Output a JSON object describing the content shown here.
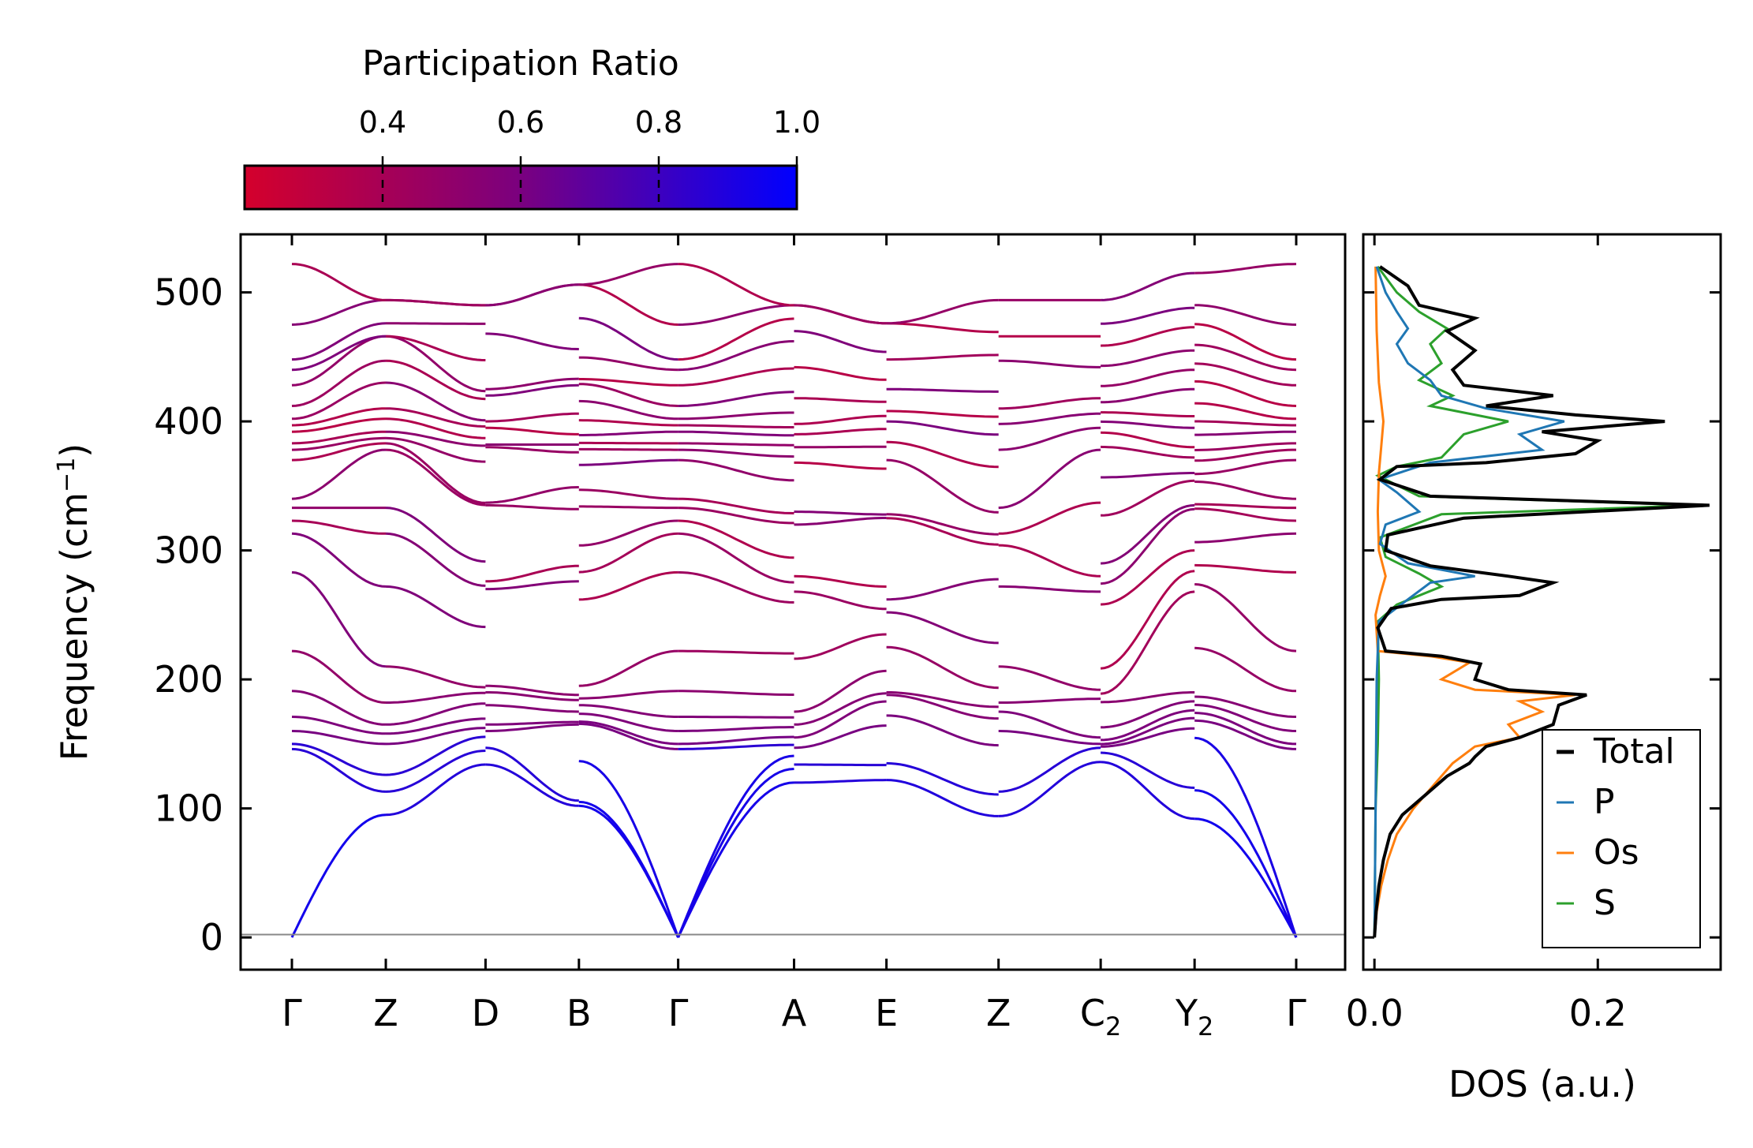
{
  "chart_data": [
    {
      "type": "line",
      "title": "",
      "xlabel": "",
      "ylabel": "Frequency (cm",
      "ylabel_sup": "−1",
      "ylabel_close": ")",
      "ylim": [
        -25,
        545
      ],
      "yticks": [
        "0",
        "100",
        "200",
        "300",
        "400",
        "500"
      ],
      "ytick_values": [
        0,
        100,
        200,
        300,
        400,
        500
      ],
      "high_symmetry_points": [
        {
          "label": "Γ",
          "sub": "",
          "x": 0.0
        },
        {
          "label": "Z",
          "sub": "",
          "x": 0.0935
        },
        {
          "label": "D",
          "sub": "",
          "x": 0.1928
        },
        {
          "label": "B",
          "sub": "",
          "x": 0.2858
        },
        {
          "label": "Γ",
          "sub": "",
          "x": 0.3846
        },
        {
          "label": "A",
          "sub": "",
          "x": 0.5
        },
        {
          "label": "E",
          "sub": "",
          "x": 0.592
        },
        {
          "label": "Z",
          "sub": "",
          "x": 0.7036
        },
        {
          "label": "C",
          "sub": "2",
          "x": 0.8053
        },
        {
          "label": "Y",
          "sub": "2",
          "x": 0.8988
        },
        {
          "label": "Γ",
          "sub": "",
          "x": 1.0
        }
      ],
      "band_edge_values": [
        {
          "segment": "Γ-Z",
          "start": [
            0,
            146,
            150,
            160,
            171,
            191,
            222,
            283,
            313,
            323,
            333,
            340,
            370,
            378,
            383,
            392,
            397,
            402,
            412,
            428,
            440,
            448,
            475,
            522
          ],
          "end": [
            95,
            113,
            126,
            150,
            158,
            165,
            182,
            210,
            272,
            313,
            333,
            378,
            383,
            387,
            392,
            402,
            410,
            430,
            447,
            466,
            466,
            476,
            494,
            494
          ]
        },
        {
          "segment": "Z-D",
          "end": [
            134,
            147,
            160,
            165,
            180,
            190,
            195,
            270,
            276,
            335,
            337,
            380,
            382,
            395,
            400,
            420,
            425,
            468,
            490,
            490
          ]
        },
        {
          "segment": "D-B",
          "end": [
            102,
            106,
            165,
            167,
            175,
            184,
            188,
            276,
            288,
            332,
            349,
            376,
            382,
            390,
            406,
            428,
            433,
            456,
            506,
            506
          ]
        },
        {
          "segment": "B-Γ",
          "end": [
            0,
            0,
            0,
            146,
            150,
            160,
            171,
            191,
            222,
            283,
            313,
            323,
            333,
            340,
            370,
            378,
            383,
            392,
            397,
            402,
            412,
            428,
            440,
            448,
            475,
            522
          ]
        },
        {
          "segment": "Γ-A",
          "end": [
            120,
            134,
            147,
            155,
            165,
            175,
            216,
            268,
            280,
            320,
            330,
            368,
            380,
            390,
            398,
            418,
            442,
            470,
            490,
            490
          ]
        },
        {
          "segment": "A-E",
          "end": [
            122,
            135,
            172,
            188,
            190,
            225,
            252,
            262,
            325,
            328,
            370,
            384,
            400,
            408,
            425,
            448,
            476,
            476
          ]
        },
        {
          "segment": "E-Z",
          "end": [
            94,
            113,
            160,
            175,
            182,
            210,
            272,
            304,
            313,
            333,
            378,
            398,
            410,
            447,
            466,
            494
          ]
        },
        {
          "segment": "Z-C2",
          "end": [
            136,
            147,
            150,
            155,
            185,
            192,
            268,
            280,
            337,
            378,
            395,
            406,
            418,
            442,
            466,
            494
          ]
        },
        {
          "segment": "C2-Y2",
          "end": [
            92,
            116,
            162,
            170,
            176,
            183,
            190,
            268,
            284,
            300,
            332,
            335,
            354,
            360,
            372,
            380,
            395,
            404,
            425,
            440,
            455,
            473,
            488,
            515
          ]
        },
        {
          "segment": "Y2-Γ",
          "end": [
            0,
            0,
            0,
            146,
            150,
            160,
            171,
            191,
            222,
            283,
            313,
            323,
            333,
            340,
            370,
            378,
            383,
            392,
            397,
            402,
            412,
            428,
            440,
            448,
            475,
            522
          ]
        }
      ]
    },
    {
      "type": "colorbar",
      "title": "Participation Ratio",
      "range": [
        0.2,
        1.0
      ],
      "ticks": [
        "0.4",
        "0.6",
        "0.8",
        "1.0"
      ],
      "tick_values": [
        0.4,
        0.6,
        0.8,
        1.0
      ],
      "colormap": [
        "#d4002c",
        "#7a007f",
        "#0000ff"
      ]
    },
    {
      "type": "line",
      "title": "",
      "xlabel": "DOS (a.u.)",
      "ylabel": "",
      "xlim": [
        -0.01,
        0.31
      ],
      "xticks": [
        "0.0",
        "0.2"
      ],
      "xtick_values": [
        0.0,
        0.2
      ],
      "legend": "bottom-right",
      "series": [
        {
          "name": "Total",
          "color": "#000000",
          "points": [
            [
              0,
              0
            ],
            [
              0.0015,
              20
            ],
            [
              0.004,
              40
            ],
            [
              0.008,
              60
            ],
            [
              0.014,
              80
            ],
            [
              0.025,
              95
            ],
            [
              0.045,
              110
            ],
            [
              0.065,
              125
            ],
            [
              0.085,
              135
            ],
            [
              0.09,
              140
            ],
            [
              0.1,
              148
            ],
            [
              0.13,
              155
            ],
            [
              0.16,
              165
            ],
            [
              0.165,
              180
            ],
            [
              0.19,
              188
            ],
            [
              0.12,
              192
            ],
            [
              0.09,
              200
            ],
            [
              0.095,
              212
            ],
            [
              0.06,
              218
            ],
            [
              0.01,
              222
            ],
            [
              0.003,
              240
            ],
            [
              0.015,
              255
            ],
            [
              0.06,
              262
            ],
            [
              0.13,
              265
            ],
            [
              0.16,
              275
            ],
            [
              0.12,
              280
            ],
            [
              0.05,
              288
            ],
            [
              0.01,
              300
            ],
            [
              0.012,
              312
            ],
            [
              0.08,
              325
            ],
            [
              0.3,
              335
            ],
            [
              0.05,
              342
            ],
            [
              0.005,
              355
            ],
            [
              0.02,
              365
            ],
            [
              0.1,
              368
            ],
            [
              0.18,
              375
            ],
            [
              0.2,
              385
            ],
            [
              0.15,
              392
            ],
            [
              0.26,
              400
            ],
            [
              0.18,
              405
            ],
            [
              0.1,
              412
            ],
            [
              0.16,
              420
            ],
            [
              0.08,
              428
            ],
            [
              0.07,
              440
            ],
            [
              0.09,
              455
            ],
            [
              0.065,
              470
            ],
            [
              0.09,
              480
            ],
            [
              0.04,
              490
            ],
            [
              0.03,
              505
            ],
            [
              0.005,
              520
            ]
          ]
        },
        {
          "name": "P",
          "color": "#1f77b4",
          "points": [
            [
              0,
              0
            ],
            [
              0.001,
              100
            ],
            [
              0.002,
              200
            ],
            [
              0.004,
              245
            ],
            [
              0.03,
              262
            ],
            [
              0.05,
              275
            ],
            [
              0.09,
              280
            ],
            [
              0.03,
              290
            ],
            [
              0.005,
              305
            ],
            [
              0.01,
              320
            ],
            [
              0.04,
              330
            ],
            [
              0.02,
              345
            ],
            [
              0.004,
              355
            ],
            [
              0.05,
              368
            ],
            [
              0.15,
              378
            ],
            [
              0.13,
              390
            ],
            [
              0.17,
              400
            ],
            [
              0.1,
              410
            ],
            [
              0.06,
              420
            ],
            [
              0.05,
              432
            ],
            [
              0.03,
              445
            ],
            [
              0.02,
              460
            ],
            [
              0.03,
              472
            ],
            [
              0.02,
              485
            ],
            [
              0.01,
              500
            ],
            [
              0.002,
              520
            ]
          ]
        },
        {
          "name": "Os",
          "color": "#ff7f0e",
          "points": [
            [
              0,
              0
            ],
            [
              0.002,
              20
            ],
            [
              0.006,
              40
            ],
            [
              0.012,
              60
            ],
            [
              0.02,
              80
            ],
            [
              0.035,
              100
            ],
            [
              0.055,
              120
            ],
            [
              0.07,
              135
            ],
            [
              0.09,
              148
            ],
            [
              0.13,
              155
            ],
            [
              0.12,
              165
            ],
            [
              0.15,
              175
            ],
            [
              0.13,
              183
            ],
            [
              0.18,
              188
            ],
            [
              0.09,
              192
            ],
            [
              0.06,
              200
            ],
            [
              0.085,
              213
            ],
            [
              0.05,
              218
            ],
            [
              0.003,
              222
            ],
            [
              0.001,
              250
            ],
            [
              0.005,
              265
            ],
            [
              0.01,
              280
            ],
            [
              0.004,
              300
            ],
            [
              0.003,
              330
            ],
            [
              0.004,
              360
            ],
            [
              0.006,
              380
            ],
            [
              0.008,
              400
            ],
            [
              0.004,
              430
            ],
            [
              0.002,
              470
            ],
            [
              0.001,
              520
            ]
          ]
        },
        {
          "name": "S",
          "color": "#2ca02c",
          "points": [
            [
              0,
              0
            ],
            [
              0.0005,
              50
            ],
            [
              0.001,
              100
            ],
            [
              0.003,
              150
            ],
            [
              0.004,
              200
            ],
            [
              0.003,
              245
            ],
            [
              0.02,
              258
            ],
            [
              0.04,
              265
            ],
            [
              0.06,
              272
            ],
            [
              0.04,
              282
            ],
            [
              0.01,
              295
            ],
            [
              0.005,
              310
            ],
            [
              0.06,
              328
            ],
            [
              0.29,
              335
            ],
            [
              0.04,
              342
            ],
            [
              0.003,
              358
            ],
            [
              0.02,
              365
            ],
            [
              0.06,
              372
            ],
            [
              0.08,
              390
            ],
            [
              0.12,
              400
            ],
            [
              0.05,
              412
            ],
            [
              0.07,
              420
            ],
            [
              0.04,
              432
            ],
            [
              0.06,
              445
            ],
            [
              0.05,
              460
            ],
            [
              0.065,
              472
            ],
            [
              0.04,
              485
            ],
            [
              0.02,
              500
            ],
            [
              0.003,
              520
            ]
          ]
        }
      ]
    }
  ]
}
